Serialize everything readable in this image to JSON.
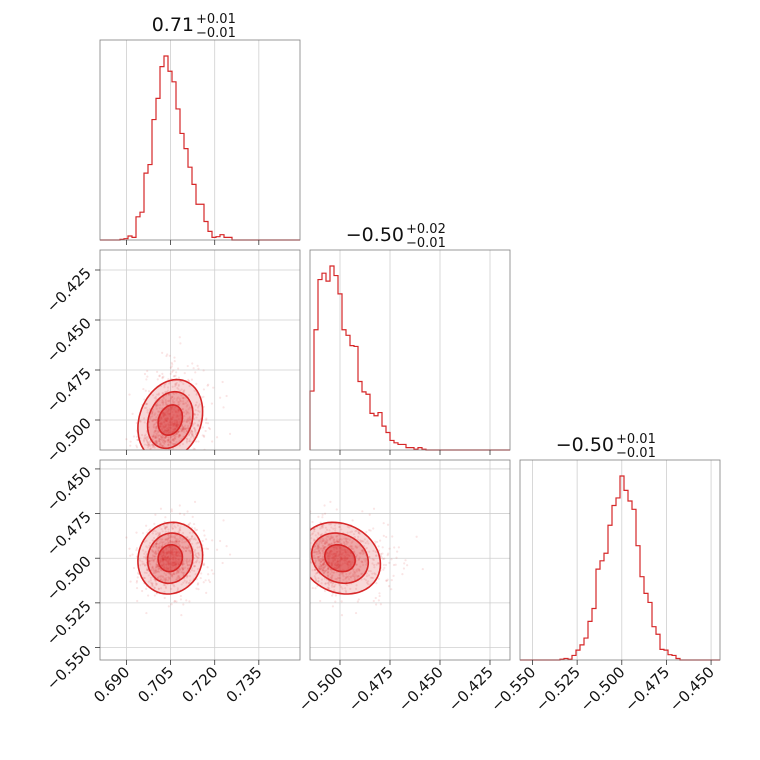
{
  "chart_data": {
    "type": "corner",
    "color": "#d62728",
    "params": [
      {
        "title": {
          "value": "0.71",
          "plus": "+0.01",
          "minus": "−0.01"
        },
        "range": [
          0.681,
          0.749
        ],
        "ticks": [
          0.69,
          0.705,
          0.72,
          0.735
        ],
        "tick_labels": [
          "0.690",
          "0.705",
          "0.720",
          "0.735"
        ],
        "mean": 0.705,
        "sd": 0.0055,
        "skew": 2.0,
        "hist_peak": 0.703
      },
      {
        "title": {
          "value": "−0.50",
          "plus": "+0.02",
          "minus": "−0.01"
        },
        "range": [
          -0.515,
          -0.415
        ],
        "ticks": [
          -0.5,
          -0.475,
          -0.45,
          -0.425
        ],
        "tick_labels": [
          "−0.500",
          "−0.475",
          "−0.450",
          "−0.425"
        ],
        "mean": -0.5,
        "sd": 0.01,
        "skew": 4.0,
        "hist_peak": -0.51
      },
      {
        "title": {
          "value": "−0.50",
          "plus": "+0.01",
          "minus": "−0.01"
        },
        "range": [
          -0.557,
          -0.445
        ],
        "ticks": [
          -0.55,
          -0.525,
          -0.5,
          -0.475,
          -0.45
        ],
        "tick_labels": [
          "−0.550",
          "−0.525",
          "−0.500",
          "−0.475",
          "−0.450"
        ],
        "mean": -0.5,
        "sd": 0.006,
        "skew": 0.0,
        "hist_peak": -0.5
      }
    ],
    "correlations": {
      "1-0": 0.85,
      "2-0": 0.2,
      "2-1": -0.7
    },
    "contour_levels": 3,
    "grid": true
  }
}
